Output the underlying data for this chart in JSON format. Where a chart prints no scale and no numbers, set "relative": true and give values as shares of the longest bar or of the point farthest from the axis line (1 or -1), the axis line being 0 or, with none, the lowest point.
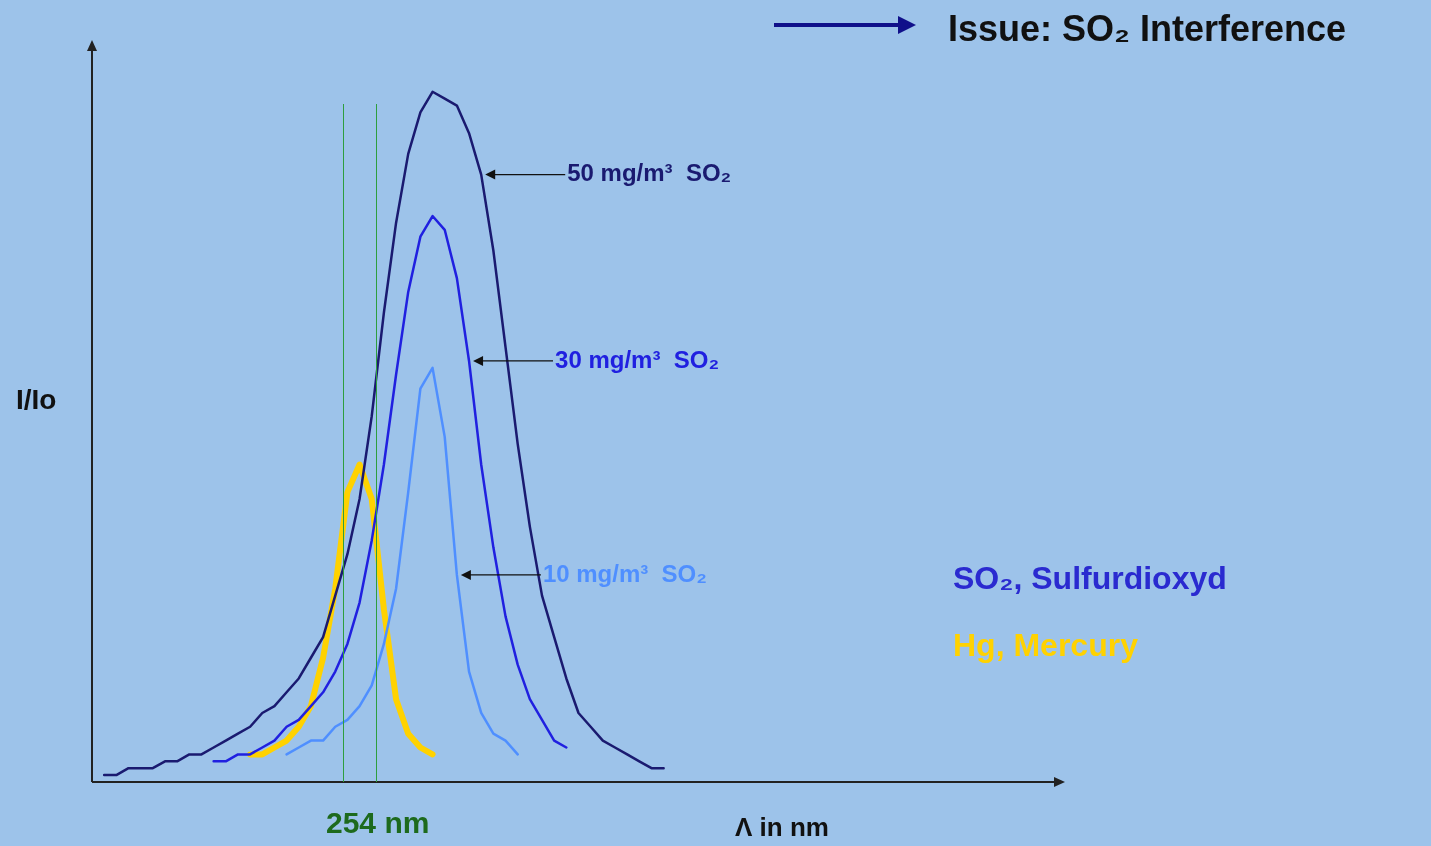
{
  "chart_data": {
    "type": "line",
    "title": "Issue: SO₂ Interference",
    "xlabel": "Λ in nm",
    "ylabel": "I/Io",
    "relative": true,
    "marker": "none",
    "line_style": "solid",
    "categories": [
      null,
      null,
      null,
      null,
      null,
      null,
      null,
      null,
      null,
      null,
      null,
      null,
      null,
      null,
      null,
      null,
      null,
      null,
      null,
      null,
      null,
      null,
      null,
      null,
      null,
      null,
      null,
      null,
      null,
      null,
      null,
      null,
      null,
      null,
      null,
      null,
      null,
      null,
      null,
      null,
      null,
      null,
      null,
      null,
      null,
      null,
      null,
      null,
      null,
      null,
      null,
      null,
      null,
      null,
      null,
      null,
      null,
      null,
      null,
      null,
      null,
      null,
      null,
      null,
      null,
      null,
      null,
      null,
      null,
      null,
      null,
      null,
      null,
      null,
      null,
      null,
      null,
      null,
      null,
      null,
      null
    ],
    "series": [
      {
        "name": "50 mg/m³  SO₂",
        "color": "#1a1a70",
        "values": [
          null,
          0.01,
          0.01,
          0.02,
          0.02,
          0.02,
          0.03,
          0.03,
          0.04,
          0.04,
          0.05,
          0.06,
          0.07,
          0.08,
          0.1,
          0.11,
          0.13,
          0.15,
          0.18,
          0.21,
          0.27,
          0.33,
          0.41,
          0.53,
          0.68,
          0.81,
          0.91,
          0.97,
          1,
          0.99,
          0.98,
          0.94,
          0.88,
          0.77,
          0.63,
          0.49,
          0.37,
          0.27,
          0.21,
          0.15,
          0.1,
          0.08,
          0.06,
          0.05,
          0.04,
          0.03,
          0.02,
          0.02,
          null,
          null,
          null,
          null,
          null,
          null,
          null,
          null,
          null,
          null,
          null,
          null,
          null,
          null,
          null,
          null,
          null,
          null,
          null,
          null,
          null,
          null,
          null,
          null,
          null,
          null,
          null,
          null,
          null,
          null,
          null,
          null,
          null
        ]
      },
      {
        "name": "30 mg/m³  SO₂",
        "color": "#2020e0",
        "values": [
          null,
          null,
          null,
          null,
          null,
          null,
          null,
          null,
          null,
          null,
          0.03,
          0.03,
          0.04,
          0.04,
          0.05,
          0.06,
          0.08,
          0.09,
          0.11,
          0.13,
          0.16,
          0.2,
          0.26,
          0.35,
          0.46,
          0.59,
          0.71,
          0.79,
          0.82,
          0.8,
          0.73,
          0.61,
          0.46,
          0.34,
          0.24,
          0.17,
          0.12,
          0.09,
          0.06,
          0.05,
          null,
          null,
          null,
          null,
          null,
          null,
          null,
          null,
          null,
          null,
          null,
          null,
          null,
          null,
          null,
          null,
          null,
          null,
          null,
          null,
          null,
          null,
          null,
          null,
          null,
          null,
          null,
          null,
          null,
          null,
          null,
          null,
          null,
          null,
          null,
          null,
          null,
          null,
          null,
          null,
          null
        ]
      },
      {
        "name": "10 mg/m³  SO₂",
        "color": "#4f8fff",
        "values": [
          null,
          null,
          null,
          null,
          null,
          null,
          null,
          null,
          null,
          null,
          null,
          null,
          null,
          null,
          null,
          null,
          0.04,
          0.05,
          0.06,
          0.06,
          0.08,
          0.09,
          0.11,
          0.14,
          0.2,
          0.28,
          0.42,
          0.57,
          0.6,
          0.5,
          0.3,
          0.16,
          0.1,
          0.07,
          0.06,
          0.04,
          null,
          null,
          null,
          null,
          null,
          null,
          null,
          null,
          null,
          null,
          null,
          null,
          null,
          null,
          null,
          null,
          null,
          null,
          null,
          null,
          null,
          null,
          null,
          null,
          null,
          null,
          null,
          null,
          null,
          null,
          null,
          null,
          null,
          null,
          null,
          null,
          null,
          null,
          null,
          null,
          null,
          null,
          null,
          null,
          null
        ]
      },
      {
        "name": "Hg, Mercury",
        "color": "#ffd200",
        "values": [
          null,
          null,
          null,
          null,
          null,
          null,
          null,
          null,
          null,
          null,
          null,
          null,
          null,
          0.04,
          0.04,
          0.05,
          0.06,
          0.08,
          0.11,
          0.18,
          0.28,
          0.42,
          0.46,
          0.41,
          0.25,
          0.12,
          0.07,
          0.05,
          0.04,
          null,
          null,
          null,
          null,
          null,
          null,
          null,
          null,
          null,
          null,
          null,
          null,
          null,
          null,
          null,
          null,
          null,
          null,
          null,
          null,
          null,
          null,
          null,
          null,
          null,
          null,
          null,
          null,
          null,
          null,
          null,
          null,
          null,
          null,
          null,
          null,
          null,
          null,
          null,
          null,
          null,
          null,
          null,
          null,
          null,
          null,
          null,
          null,
          null,
          null,
          null,
          null
        ]
      }
    ],
    "annotations": [
      "SO₂, Sulfurdioxyd",
      "254 nm"
    ]
  }
}
